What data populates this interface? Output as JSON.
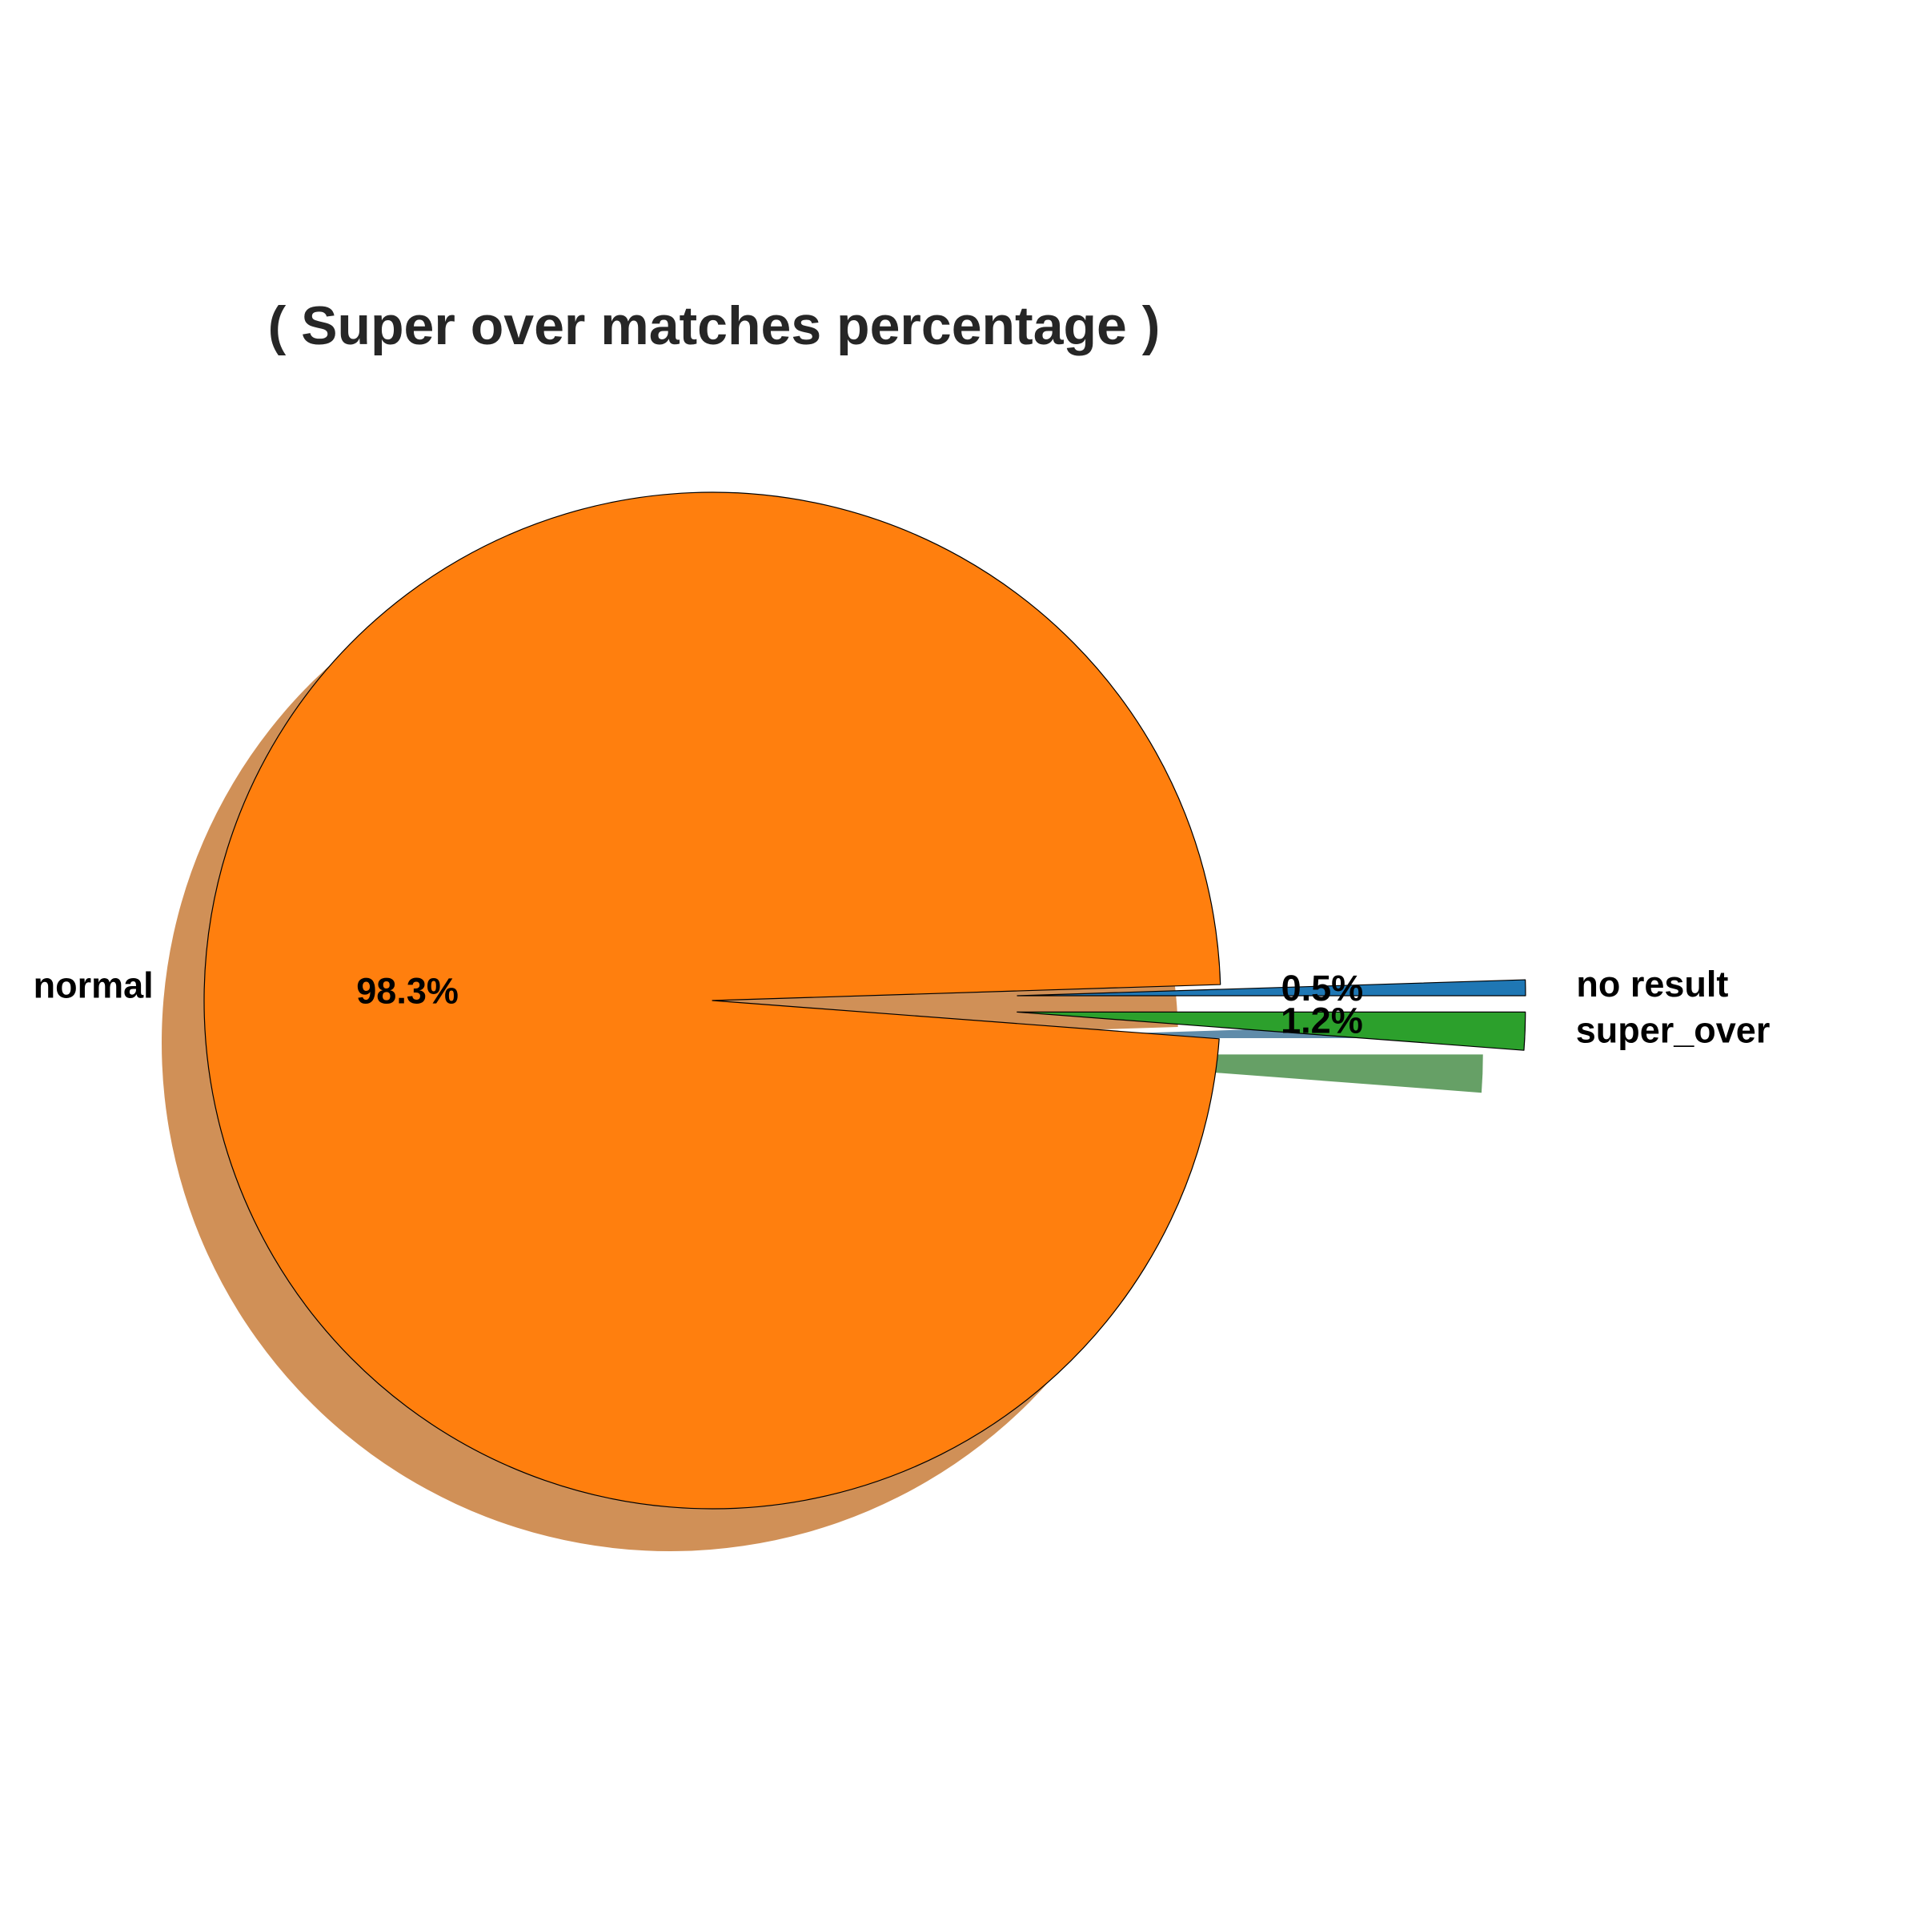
{
  "chart_data": {
    "type": "pie",
    "title": "( Super over matches percentage )",
    "slices": [
      {
        "label": "no result",
        "value": 0.5,
        "pct_label": "0.5%",
        "color": "#1f77b4",
        "explode": true
      },
      {
        "label": "normal",
        "value": 98.3,
        "pct_label": "98.3%",
        "color": "#ff7f0e",
        "explode": false
      },
      {
        "label": "super_over",
        "value": 1.2,
        "pct_label": "1.2%",
        "color": "#2ca02c",
        "explode": true
      }
    ],
    "shadow": true,
    "start_angle_deg": 0,
    "edge_color": "#000000"
  }
}
